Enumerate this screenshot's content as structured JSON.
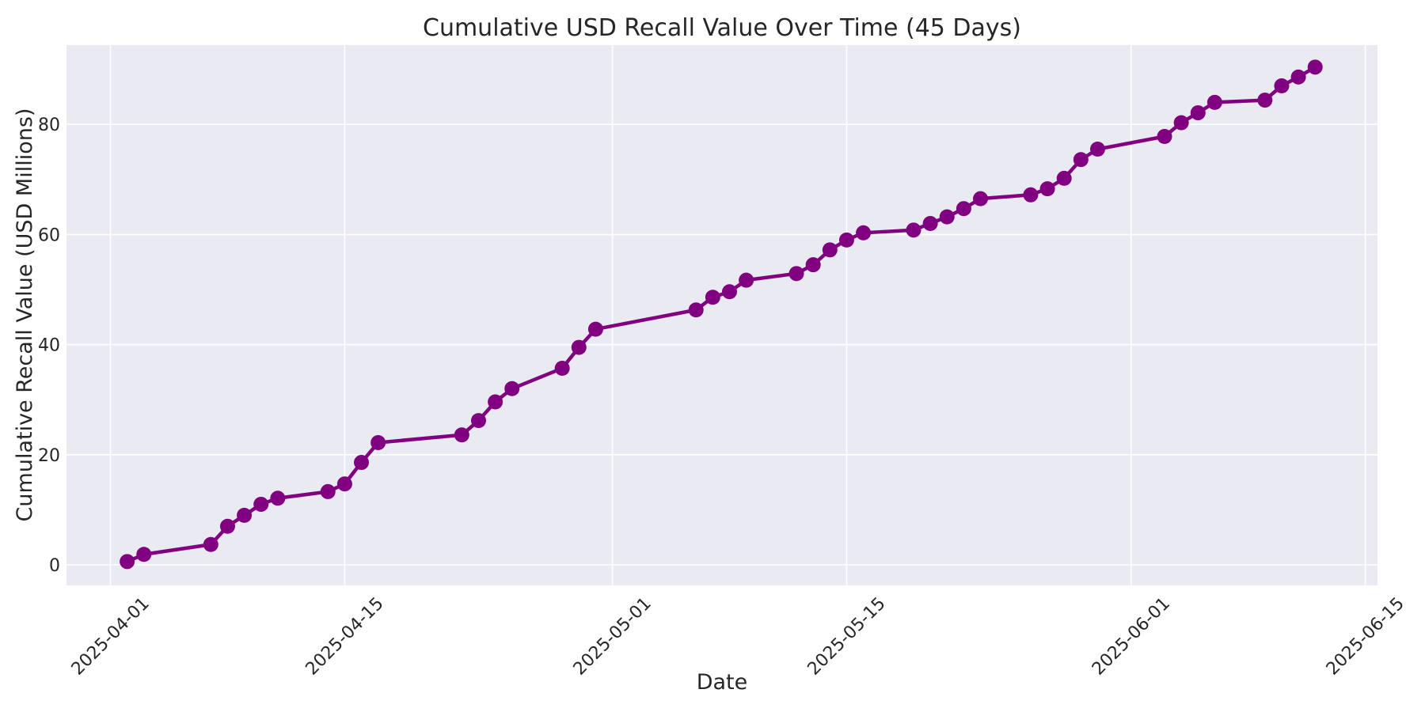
{
  "chart_data": {
    "type": "line",
    "title": "Cumulative USD Recall Value Over Time (45 Days)",
    "xlabel": "Date",
    "ylabel": "Cumulative Recall Value (USD Millions)",
    "series": [
      {
        "name": "Cumulative USD Recall Value",
        "x": [
          "2025-04-02",
          "2025-04-03",
          "2025-04-07",
          "2025-04-08",
          "2025-04-09",
          "2025-04-10",
          "2025-04-11",
          "2025-04-14",
          "2025-04-15",
          "2025-04-16",
          "2025-04-17",
          "2025-04-22",
          "2025-04-23",
          "2025-04-24",
          "2025-04-25",
          "2025-04-28",
          "2025-04-29",
          "2025-04-30",
          "2025-05-06",
          "2025-05-07",
          "2025-05-08",
          "2025-05-09",
          "2025-05-12",
          "2025-05-13",
          "2025-05-14",
          "2025-05-15",
          "2025-05-16",
          "2025-05-19",
          "2025-05-20",
          "2025-05-21",
          "2025-05-22",
          "2025-05-23",
          "2025-05-26",
          "2025-05-27",
          "2025-05-28",
          "2025-05-29",
          "2025-05-30",
          "2025-06-03",
          "2025-06-04",
          "2025-06-05",
          "2025-06-06",
          "2025-06-09",
          "2025-06-10",
          "2025-06-11",
          "2025-06-12"
        ],
        "y": [
          0.6,
          1.9,
          3.7,
          7.0,
          9.0,
          11.0,
          12.1,
          13.3,
          14.7,
          18.6,
          22.2,
          23.6,
          26.2,
          29.6,
          32.0,
          35.7,
          39.5,
          42.8,
          46.3,
          48.6,
          49.6,
          51.7,
          52.9,
          54.5,
          57.2,
          59.0,
          60.3,
          60.8,
          62.0,
          63.2,
          64.7,
          66.5,
          67.2,
          68.3,
          70.2,
          73.6,
          75.5,
          77.8,
          80.3,
          82.1,
          84.0,
          84.4,
          87.0,
          88.6,
          90.4
        ]
      }
    ],
    "x_ticks": [
      "2025-04-01",
      "2025-04-15",
      "2025-05-01",
      "2025-05-15",
      "2025-06-01",
      "2025-06-15"
    ],
    "y_ticks": [
      0,
      20,
      40,
      60,
      80
    ],
    "ylim": [
      -4,
      94.5
    ],
    "xlim": [
      "2025-03-29",
      "2025-06-16"
    ],
    "grid": true,
    "legend": false,
    "marker": "circle",
    "line_color": "#800080",
    "plot_bg_color": "#EAEAF2",
    "grid_color": "#FFFFFF",
    "text_color": "#262626",
    "figure_bg_color": "#FFFFFF"
  }
}
